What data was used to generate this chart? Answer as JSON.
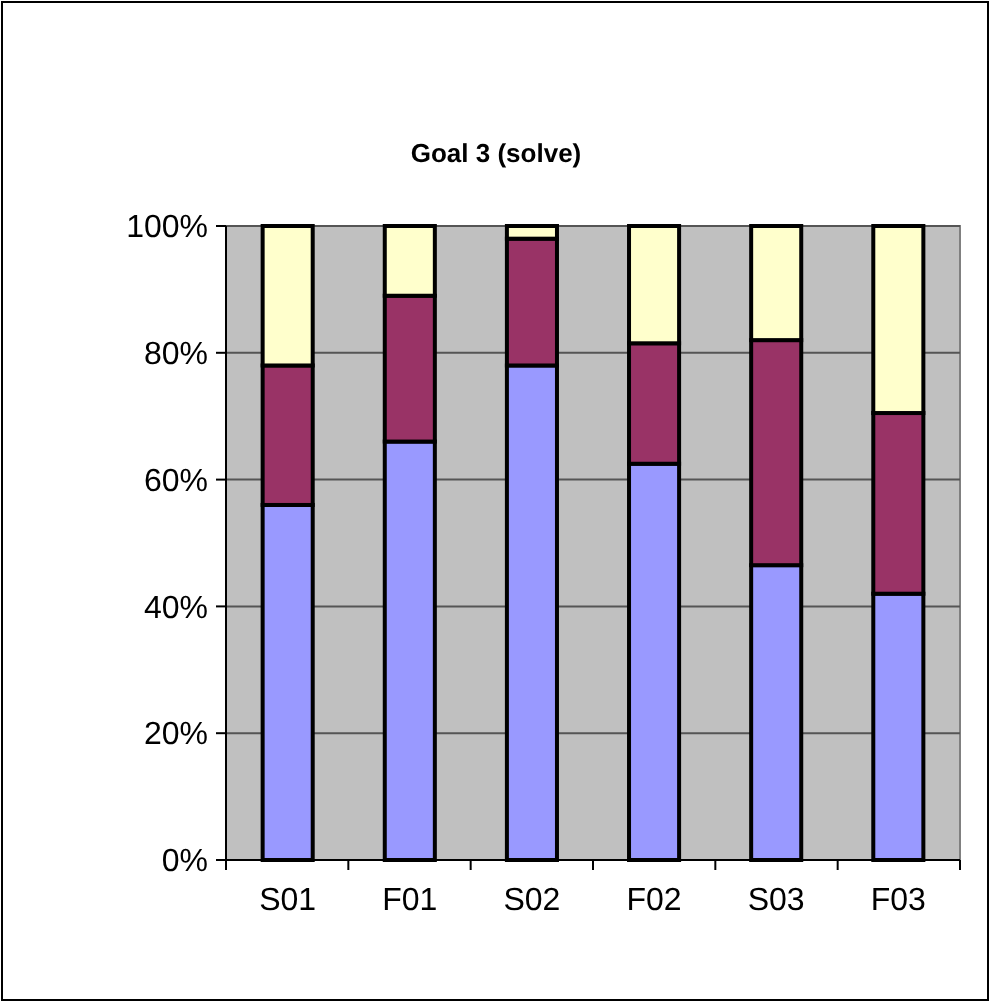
{
  "chart_data": {
    "type": "bar",
    "title": "Goal 3 (solve)",
    "categories": [
      "S01",
      "F01",
      "S02",
      "F02",
      "S03",
      "F03"
    ],
    "stacked": true,
    "series": [
      {
        "color": "#9999ff",
        "values": [
          56,
          66,
          78,
          62.5,
          46.5,
          42
        ]
      },
      {
        "color": "#993366",
        "values": [
          22,
          23,
          20,
          19,
          35.5,
          28.5
        ]
      },
      {
        "color": "#ffffcc",
        "values": [
          22,
          11,
          2,
          18.5,
          18,
          29.5
        ]
      }
    ],
    "ylim": [
      0,
      100
    ],
    "yticks": [
      {
        "value": 0,
        "label": "0%"
      },
      {
        "value": 20,
        "label": "20%"
      },
      {
        "value": 40,
        "label": "40%"
      },
      {
        "value": 60,
        "label": "60%"
      },
      {
        "value": 80,
        "label": "80%"
      },
      {
        "value": 100,
        "label": "100%"
      }
    ],
    "grid": "y"
  }
}
